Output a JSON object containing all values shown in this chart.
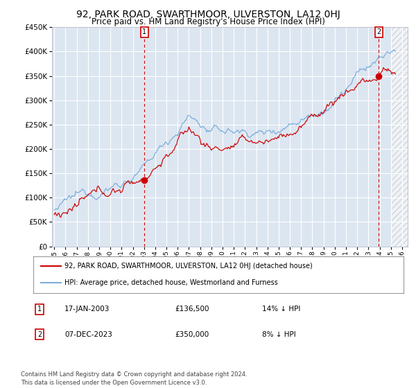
{
  "title": "92, PARK ROAD, SWARTHMOOR, ULVERSTON, LA12 0HJ",
  "subtitle": "Price paid vs. HM Land Registry's House Price Index (HPI)",
  "ylim": [
    0,
    450000
  ],
  "yticks": [
    0,
    50000,
    100000,
    150000,
    200000,
    250000,
    300000,
    350000,
    400000,
    450000
  ],
  "ytick_labels": [
    "£0",
    "£50K",
    "£100K",
    "£150K",
    "£200K",
    "£250K",
    "£300K",
    "£350K",
    "£400K",
    "£450K"
  ],
  "xtick_years": [
    1995,
    1996,
    1997,
    1998,
    1999,
    2000,
    2001,
    2002,
    2003,
    2004,
    2005,
    2006,
    2007,
    2008,
    2009,
    2010,
    2011,
    2012,
    2013,
    2014,
    2015,
    2016,
    2017,
    2018,
    2019,
    2020,
    2021,
    2022,
    2023,
    2024,
    2025,
    2026
  ],
  "hpi_color": "#7aabdb",
  "price_color": "#cc0000",
  "background_color": "#dce6f1",
  "grid_color": "#ffffff",
  "marker1_x": 2003.04,
  "marker1_y": 136500,
  "marker2_x": 2023.92,
  "marker2_y": 350000,
  "legend_entries": [
    "92, PARK ROAD, SWARTHMOOR, ULVERSTON, LA12 0HJ (detached house)",
    "HPI: Average price, detached house, Westmorland and Furness"
  ],
  "table_rows": [
    {
      "num": "1",
      "date": "17-JAN-2003",
      "price": "£136,500",
      "hpi": "14% ↓ HPI"
    },
    {
      "num": "2",
      "date": "07-DEC-2023",
      "price": "£350,000",
      "hpi": "8% ↓ HPI"
    }
  ],
  "footer": "Contains HM Land Registry data © Crown copyright and database right 2024.\nThis data is licensed under the Open Government Licence v3.0.",
  "title_fontsize": 10,
  "subtitle_fontsize": 8.5
}
